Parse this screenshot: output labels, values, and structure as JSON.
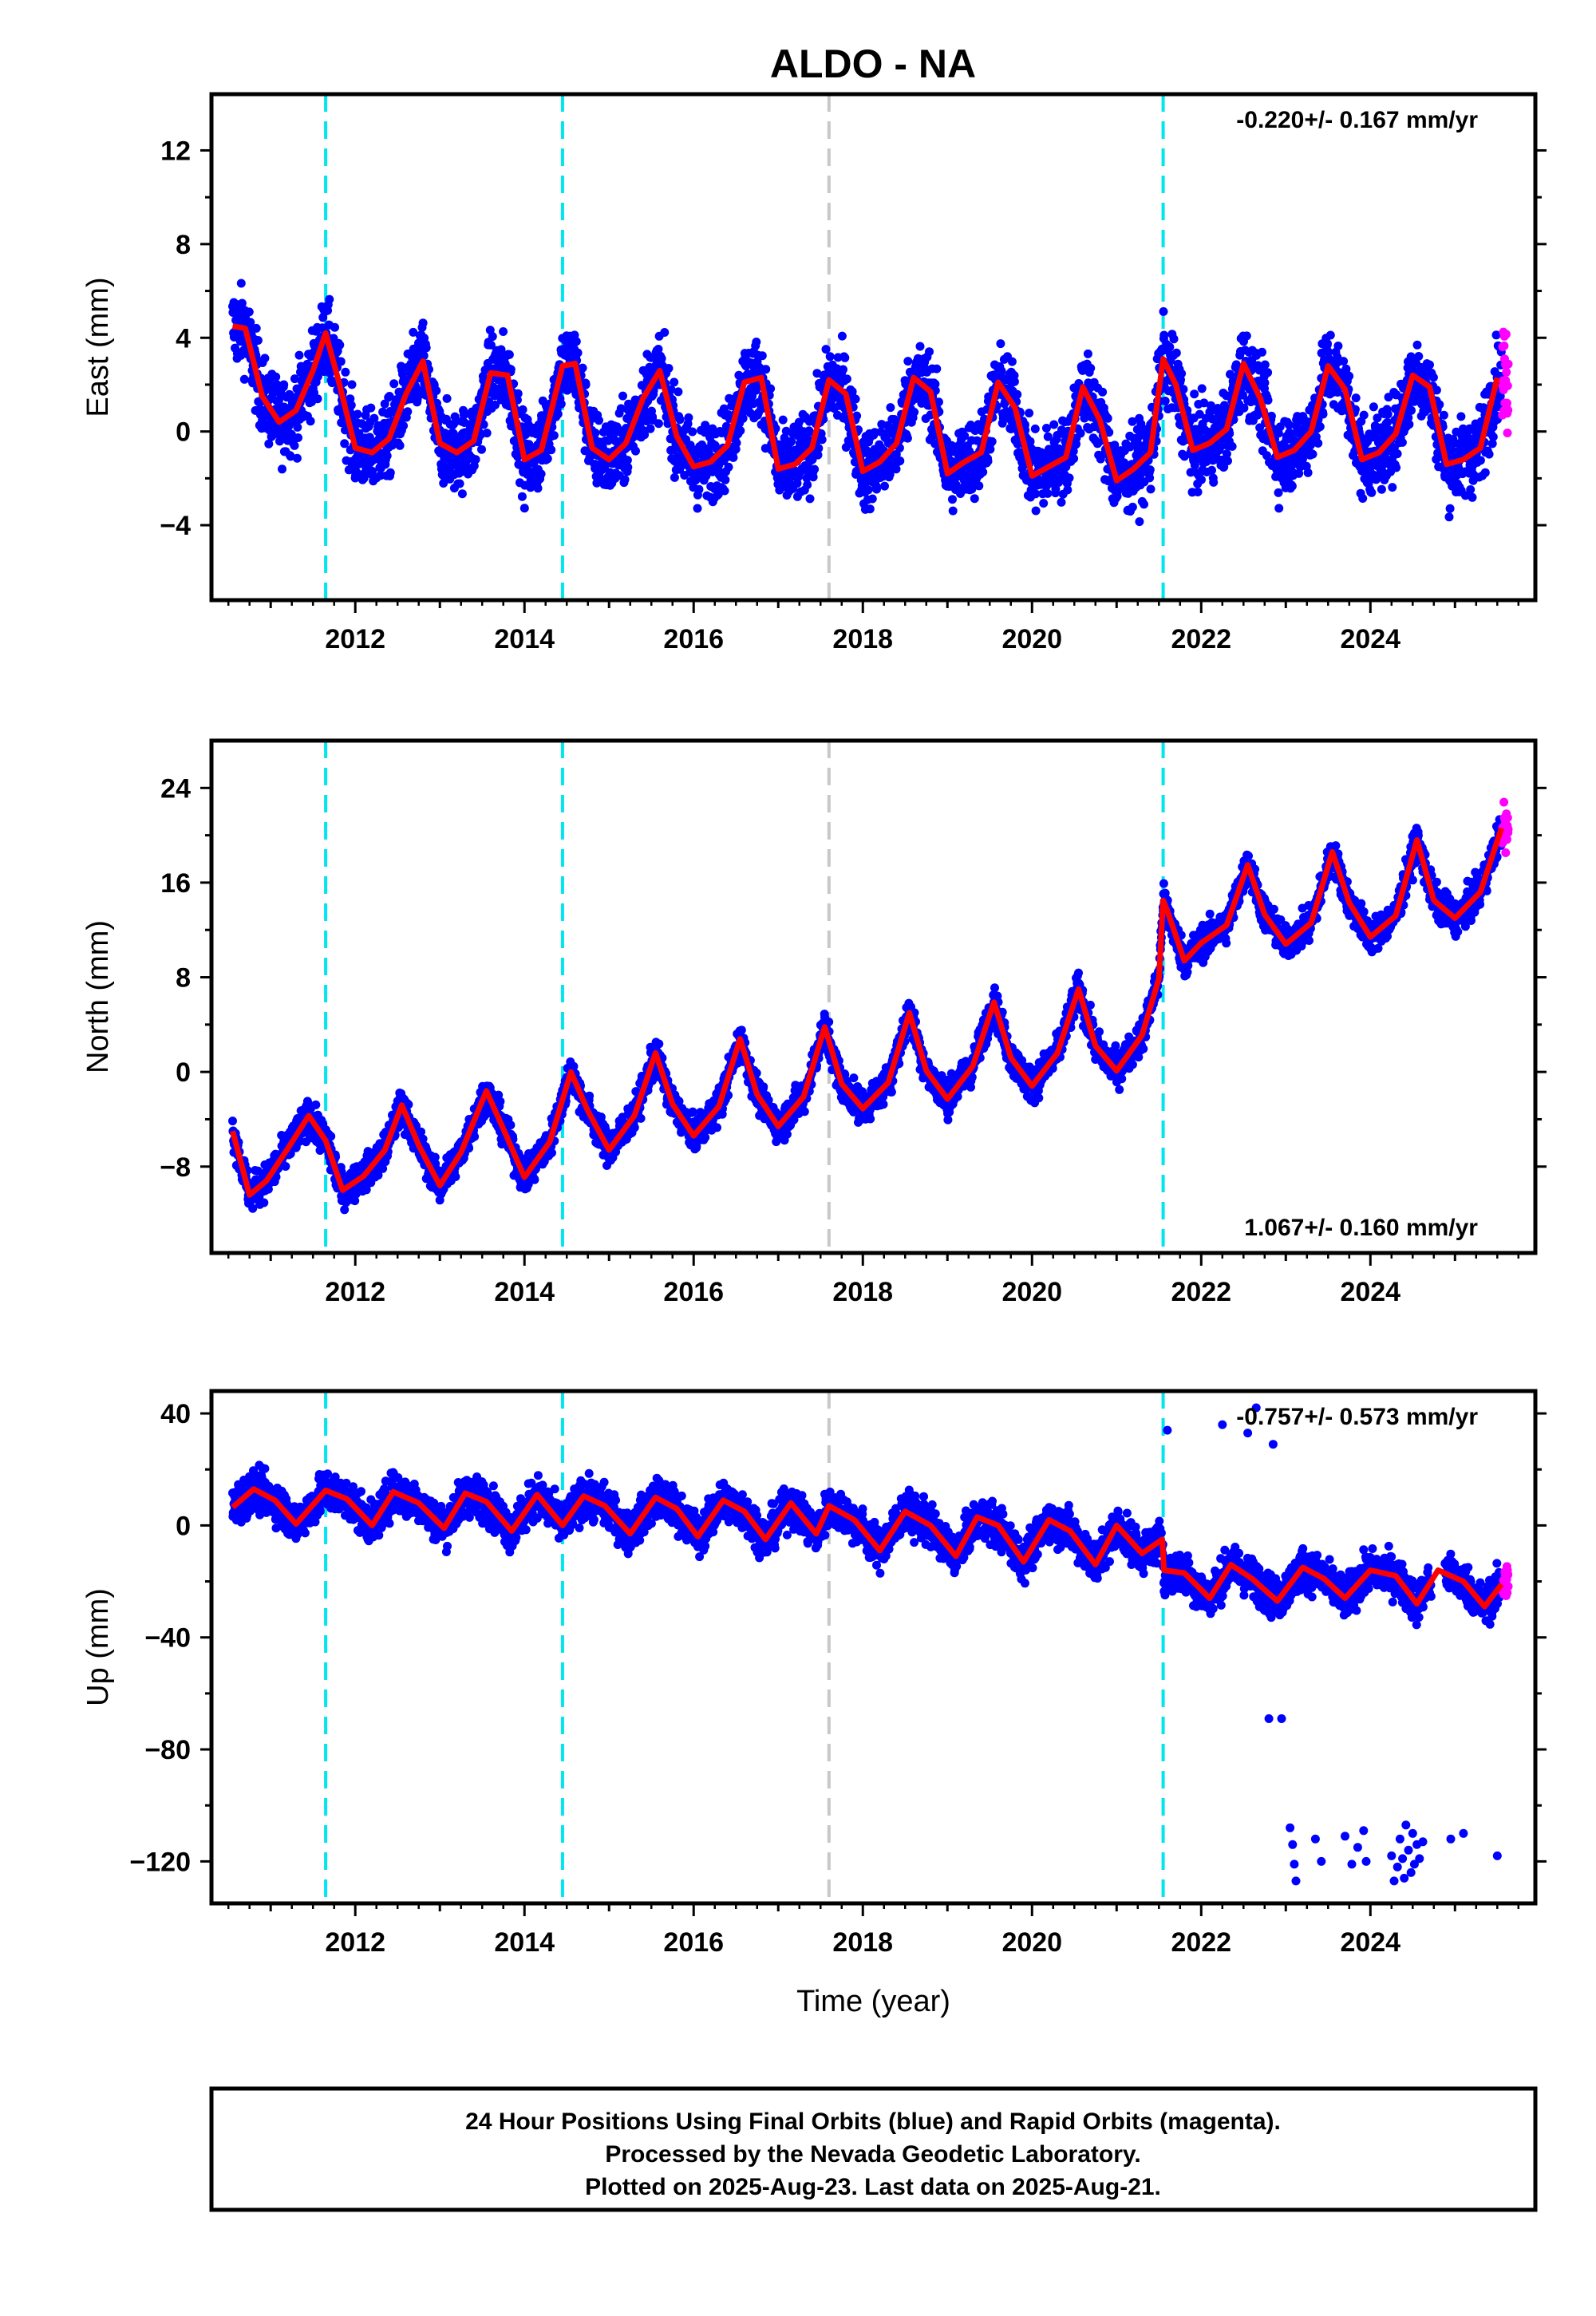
{
  "title": "ALDO - NA",
  "footer": {
    "line1": "24 Hour Positions Using Final Orbits (blue) and Rapid Orbits (magenta).",
    "line2": "Processed by the Nevada Geodetic Laboratory.",
    "line3": "Plotted on 2025-Aug-23. Last data on 2025-Aug-21."
  },
  "colors": {
    "final_orbits": "#0000ff",
    "rapid_orbits": "#ff00ff",
    "fit": "#ff0000",
    "event_cyan": "#00e5ee",
    "event_gray": "#c8c8c8"
  },
  "chart_data": [
    {
      "type": "scatter",
      "panel": "east",
      "ylabel": "East (mm)",
      "xlabel": "",
      "rate_label": "-0.220+/- 0.167 mm/yr",
      "rate_position": "top-right",
      "xlim": [
        2010.3,
        2025.95
      ],
      "ylim": [
        -7.2,
        14.4
      ],
      "yticks": [
        -4,
        0,
        4,
        8,
        12
      ],
      "xticks": [
        2012,
        2014,
        2016,
        2018,
        2020,
        2022,
        2024
      ],
      "tick_labels_x": [
        "2012",
        "2014",
        "2016",
        "2018",
        "2020",
        "2022",
        "2024"
      ],
      "tick_labels_y": [
        "−4",
        "0",
        "4",
        "8",
        "12"
      ],
      "grid": false,
      "events": [
        {
          "x": 2011.65,
          "kind": "cyan"
        },
        {
          "x": 2014.45,
          "kind": "cyan"
        },
        {
          "x": 2017.6,
          "kind": "gray"
        },
        {
          "x": 2021.55,
          "kind": "cyan"
        }
      ],
      "series": [
        {
          "role": "final",
          "start": 2010.55,
          "end": 2025.55,
          "noise": 1.4
        },
        {
          "role": "rapid",
          "start": 2025.56,
          "end": 2025.63,
          "noise": 1.8
        },
        {
          "role": "fit",
          "x": [
            2010.55,
            2010.7,
            2010.9,
            2011.1,
            2011.3,
            2011.5,
            2011.65,
            2011.8,
            2012.0,
            2012.2,
            2012.4,
            2012.6,
            2012.8,
            2013.0,
            2013.2,
            2013.4,
            2013.6,
            2013.8,
            2014.0,
            2014.2,
            2014.45,
            2014.6,
            2014.8,
            2015.0,
            2015.2,
            2015.4,
            2015.6,
            2015.8,
            2016.0,
            2016.2,
            2016.4,
            2016.6,
            2016.8,
            2017.0,
            2017.2,
            2017.4,
            2017.6,
            2017.8,
            2018.0,
            2018.2,
            2018.4,
            2018.6,
            2018.8,
            2019.0,
            2019.2,
            2019.4,
            2019.6,
            2019.8,
            2020.0,
            2020.2,
            2020.4,
            2020.6,
            2020.8,
            2021.0,
            2021.2,
            2021.4,
            2021.55,
            2021.7,
            2021.9,
            2022.1,
            2022.3,
            2022.5,
            2022.7,
            2022.9,
            2023.1,
            2023.3,
            2023.5,
            2023.7,
            2023.9,
            2024.1,
            2024.3,
            2024.5,
            2024.7,
            2024.9,
            2025.1,
            2025.3,
            2025.5
          ],
          "y": [
            4.5,
            4.4,
            1.5,
            0.4,
            0.9,
            2.6,
            4.2,
            2.2,
            -0.7,
            -0.9,
            -0.3,
            1.6,
            3.0,
            -0.5,
            -0.9,
            -0.4,
            2.5,
            2.4,
            -1.2,
            -0.8,
            2.8,
            2.9,
            -0.7,
            -1.2,
            -0.5,
            1.4,
            2.6,
            -0.2,
            -1.5,
            -1.3,
            -0.6,
            2.1,
            2.3,
            -1.6,
            -1.4,
            -0.7,
            2.2,
            1.6,
            -1.7,
            -1.3,
            -0.5,
            2.3,
            1.7,
            -1.8,
            -1.3,
            -0.9,
            2.1,
            1.0,
            -1.9,
            -1.5,
            -1.1,
            1.9,
            0.5,
            -2.1,
            -1.6,
            -0.9,
            3.1,
            2.0,
            -0.8,
            -0.5,
            0.1,
            2.9,
            1.4,
            -1.1,
            -0.8,
            0.0,
            2.8,
            1.8,
            -1.2,
            -0.9,
            -0.1,
            2.4,
            1.9,
            -1.4,
            -1.2,
            -0.7,
            2.3
          ]
        }
      ]
    },
    {
      "type": "scatter",
      "panel": "north",
      "ylabel": "North (mm)",
      "xlabel": "",
      "rate_label": "1.067+/- 0.160 mm/yr",
      "rate_position": "bottom-right",
      "xlim": [
        2010.3,
        2025.95
      ],
      "ylim": [
        -15.3,
        28.0
      ],
      "yticks": [
        -8,
        0,
        8,
        16,
        24
      ],
      "xticks": [
        2012,
        2014,
        2016,
        2018,
        2020,
        2022,
        2024
      ],
      "tick_labels_x": [
        "2012",
        "2014",
        "2016",
        "2018",
        "2020",
        "2022",
        "2024"
      ],
      "tick_labels_y": [
        "−8",
        "0",
        "8",
        "16",
        "24"
      ],
      "grid": false,
      "events": [
        {
          "x": 2011.65,
          "kind": "cyan"
        },
        {
          "x": 2014.45,
          "kind": "cyan"
        },
        {
          "x": 2017.6,
          "kind": "gray"
        },
        {
          "x": 2021.55,
          "kind": "cyan"
        }
      ],
      "series": [
        {
          "role": "final",
          "start": 2010.55,
          "end": 2025.55,
          "noise": 1.2
        },
        {
          "role": "rapid",
          "start": 2025.56,
          "end": 2025.63,
          "noise": 1.5
        },
        {
          "role": "fit",
          "x": [
            2010.55,
            2010.75,
            2010.95,
            2011.2,
            2011.45,
            2011.65,
            2011.85,
            2012.1,
            2012.35,
            2012.55,
            2012.75,
            2013.0,
            2013.25,
            2013.55,
            2013.75,
            2014.0,
            2014.3,
            2014.55,
            2014.75,
            2015.0,
            2015.3,
            2015.55,
            2015.75,
            2016.0,
            2016.3,
            2016.55,
            2016.75,
            2017.0,
            2017.3,
            2017.55,
            2017.75,
            2018.0,
            2018.3,
            2018.55,
            2018.75,
            2019.0,
            2019.3,
            2019.55,
            2019.75,
            2020.0,
            2020.3,
            2020.55,
            2020.75,
            2021.0,
            2021.3,
            2021.5,
            2021.55,
            2021.6,
            2021.8,
            2022.0,
            2022.3,
            2022.55,
            2022.75,
            2023.0,
            2023.3,
            2023.55,
            2023.75,
            2024.0,
            2024.3,
            2024.55,
            2024.75,
            2025.0,
            2025.3,
            2025.55
          ],
          "y": [
            -5.0,
            -10.4,
            -9.2,
            -6.5,
            -3.7,
            -5.8,
            -10.0,
            -8.8,
            -6.6,
            -2.8,
            -6.2,
            -9.6,
            -6.8,
            -1.6,
            -4.8,
            -8.9,
            -5.9,
            0.0,
            -3.3,
            -6.6,
            -3.7,
            1.6,
            -2.7,
            -5.4,
            -2.9,
            2.8,
            -1.9,
            -4.6,
            -2.1,
            3.8,
            -1.0,
            -3.1,
            -0.9,
            5.0,
            0.1,
            -2.3,
            0.5,
            5.9,
            1.2,
            -1.2,
            1.6,
            7.0,
            2.2,
            0.1,
            3.1,
            7.9,
            14.5,
            13.6,
            9.4,
            10.9,
            12.4,
            17.5,
            13.3,
            10.8,
            12.6,
            18.6,
            14.3,
            11.4,
            13.2,
            19.6,
            14.5,
            13.0,
            15.2,
            20.6
          ]
        }
      ]
    },
    {
      "type": "scatter",
      "panel": "up",
      "ylabel": "Up (mm)",
      "xlabel": "Time (year)",
      "rate_label": "-0.757+/- 0.573 mm/yr",
      "rate_position": "top-right",
      "xlim": [
        2010.3,
        2025.95
      ],
      "ylim": [
        -135,
        48
      ],
      "yticks": [
        -120,
        -80,
        -40,
        0,
        40
      ],
      "xticks": [
        2012,
        2014,
        2016,
        2018,
        2020,
        2022,
        2024
      ],
      "tick_labels_x": [
        "2012",
        "2014",
        "2016",
        "2018",
        "2020",
        "2022",
        "2024"
      ],
      "tick_labels_y": [
        "−120",
        "−80",
        "−40",
        "0",
        "40"
      ],
      "grid": false,
      "events": [
        {
          "x": 2011.65,
          "kind": "cyan"
        },
        {
          "x": 2014.45,
          "kind": "cyan"
        },
        {
          "x": 2017.6,
          "kind": "gray"
        },
        {
          "x": 2021.55,
          "kind": "cyan"
        }
      ],
      "outliers": [
        {
          "x": 2022.8,
          "y": -69
        },
        {
          "x": 2022.95,
          "y": -69
        },
        {
          "x": 2023.05,
          "y": -108
        },
        {
          "x": 2023.08,
          "y": -114
        },
        {
          "x": 2023.1,
          "y": -121
        },
        {
          "x": 2023.12,
          "y": -127
        },
        {
          "x": 2023.35,
          "y": -112
        },
        {
          "x": 2023.42,
          "y": -120
        },
        {
          "x": 2023.7,
          "y": -111
        },
        {
          "x": 2023.78,
          "y": -121
        },
        {
          "x": 2023.85,
          "y": -115
        },
        {
          "x": 2023.92,
          "y": -109
        },
        {
          "x": 2023.95,
          "y": -120
        },
        {
          "x": 2024.25,
          "y": -118
        },
        {
          "x": 2024.28,
          "y": -127
        },
        {
          "x": 2024.32,
          "y": -122
        },
        {
          "x": 2024.35,
          "y": -112
        },
        {
          "x": 2024.38,
          "y": -119
        },
        {
          "x": 2024.4,
          "y": -126
        },
        {
          "x": 2024.42,
          "y": -107
        },
        {
          "x": 2024.45,
          "y": -116
        },
        {
          "x": 2024.48,
          "y": -124
        },
        {
          "x": 2024.5,
          "y": -110
        },
        {
          "x": 2024.52,
          "y": -121
        },
        {
          "x": 2024.55,
          "y": -114
        },
        {
          "x": 2024.58,
          "y": -119
        },
        {
          "x": 2024.62,
          "y": -113
        },
        {
          "x": 2024.95,
          "y": -112
        },
        {
          "x": 2025.1,
          "y": -110
        },
        {
          "x": 2025.5,
          "y": -118
        },
        {
          "x": 2022.55,
          "y": 33
        },
        {
          "x": 2022.65,
          "y": 42
        },
        {
          "x": 2022.25,
          "y": 36
        },
        {
          "x": 2022.85,
          "y": 29
        },
        {
          "x": 2021.6,
          "y": 34
        }
      ],
      "series": [
        {
          "role": "final",
          "start": 2010.55,
          "end": 2025.55,
          "noise": 6.0
        },
        {
          "role": "rapid",
          "start": 2025.56,
          "end": 2025.63,
          "noise": 6.0
        },
        {
          "role": "fit",
          "x": [
            2010.55,
            2010.8,
            2011.05,
            2011.3,
            2011.65,
            2011.9,
            2012.2,
            2012.45,
            2012.75,
            2013.05,
            2013.3,
            2013.55,
            2013.85,
            2014.15,
            2014.45,
            2014.7,
            2014.95,
            2015.25,
            2015.55,
            2015.8,
            2016.05,
            2016.35,
            2016.6,
            2016.85,
            2017.15,
            2017.45,
            2017.6,
            2017.9,
            2018.2,
            2018.5,
            2018.8,
            2019.1,
            2019.35,
            2019.6,
            2019.9,
            2020.2,
            2020.45,
            2020.75,
            2021.0,
            2021.3,
            2021.54,
            2021.56,
            2021.8,
            2022.1,
            2022.35,
            2022.6,
            2022.9,
            2023.2,
            2023.45,
            2023.7,
            2024.0,
            2024.3,
            2024.55,
            2024.8,
            2025.1,
            2025.35,
            2025.55
          ],
          "y": [
            6.5,
            13.0,
            9.0,
            0.5,
            12.5,
            9.5,
            0.0,
            12.0,
            8.0,
            -1.0,
            11.5,
            8.5,
            -2.0,
            11.0,
            0.0,
            10.5,
            7.0,
            -3.0,
            10.0,
            6.0,
            -4.0,
            9.0,
            5.0,
            -5.0,
            8.0,
            -3.0,
            7.0,
            2.0,
            -9.0,
            5.0,
            0.0,
            -11.0,
            3.0,
            0.0,
            -13.0,
            2.0,
            -2.0,
            -14.0,
            0.0,
            -10.0,
            -5.0,
            -16.0,
            -17.0,
            -26.0,
            -14.0,
            -19.0,
            -27.0,
            -15.0,
            -19.0,
            -26.0,
            -16.0,
            -18.0,
            -28.0,
            -16.0,
            -20.0,
            -29.0,
            -21.0
          ]
        }
      ]
    }
  ]
}
